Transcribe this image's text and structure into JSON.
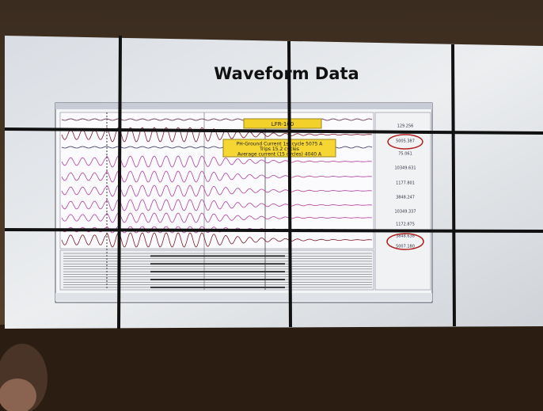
{
  "slide": {
    "title": "Waveform Data",
    "callout_label": "LFR-100",
    "callout_lines": [
      "PH-Ground Current 1st cycle 5075 A",
      "Trips 15.2 cycles",
      "Average current (15 cycles) 4040 A"
    ],
    "channel_values": [
      "129.256",
      "5005.387",
      "75.061",
      "10349.631",
      "1177.801",
      "3848.247",
      "10349.337",
      "1172.875",
      "3848.638",
      "5007.180"
    ]
  }
}
